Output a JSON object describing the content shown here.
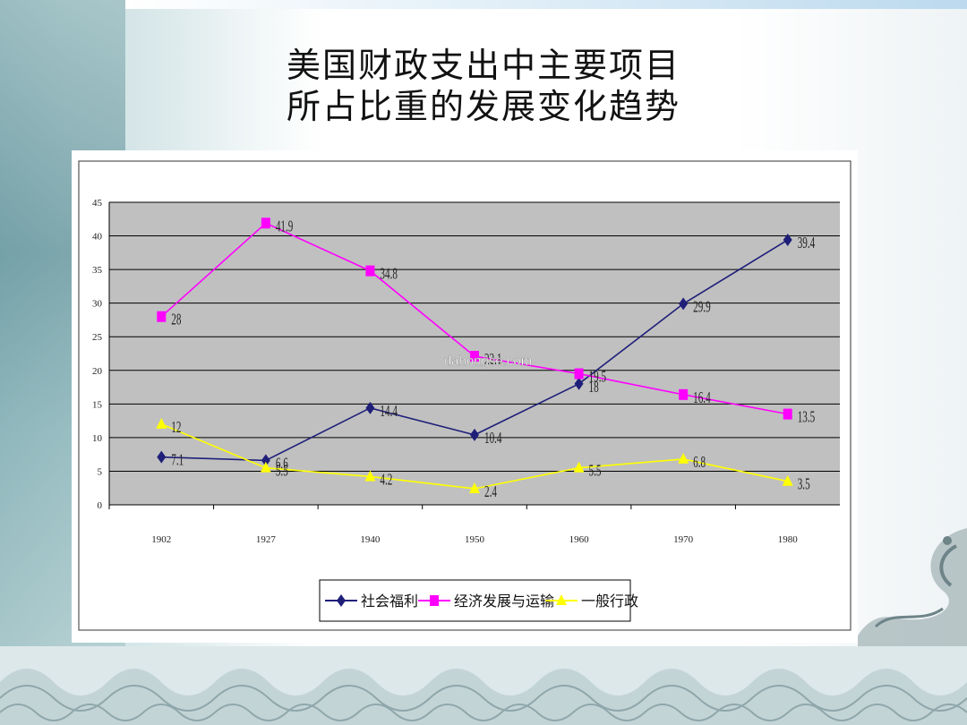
{
  "slide": {
    "title_line1": "美国财政支出中主要项目",
    "title_line2": "所占比重的发展变化趋势",
    "watermark": "dahongse.com"
  },
  "colors": {
    "plot_bg": "#c0c0c0",
    "series_welfare": "#1f1f7a",
    "series_economy": "#ff00ff",
    "series_admin": "#ffff00"
  },
  "chart_data": {
    "type": "line",
    "categories": [
      "1902",
      "1927",
      "1940",
      "1950",
      "1960",
      "1970",
      "1980"
    ],
    "ylim": [
      0,
      45
    ],
    "yticks": [
      0,
      5,
      10,
      15,
      20,
      25,
      30,
      35,
      40,
      45
    ],
    "grid": true,
    "legend_position": "bottom",
    "series": [
      {
        "name": "社会福利",
        "marker": "diamond",
        "values": [
          7.1,
          6.6,
          14.4,
          10.4,
          18,
          29.9,
          39.4
        ],
        "labels": [
          "7.1",
          "6.6",
          "14.4",
          "10.4",
          "18",
          "29.9",
          "39.4"
        ]
      },
      {
        "name": "经济发展与运输",
        "marker": "square",
        "values": [
          28,
          41.9,
          34.8,
          22.1,
          19.5,
          16.4,
          13.5
        ],
        "labels": [
          "28",
          "41.9",
          "34.8",
          "22.1",
          "19.5",
          "16.4",
          "13.5"
        ]
      },
      {
        "name": "一般行政",
        "marker": "triangle",
        "values": [
          12,
          5.5,
          4.2,
          2.4,
          5.5,
          6.8,
          3.5
        ],
        "labels": [
          "12",
          "5.5",
          "4.2",
          "2.4",
          "5.5",
          "6.8",
          "3.5"
        ]
      }
    ]
  }
}
